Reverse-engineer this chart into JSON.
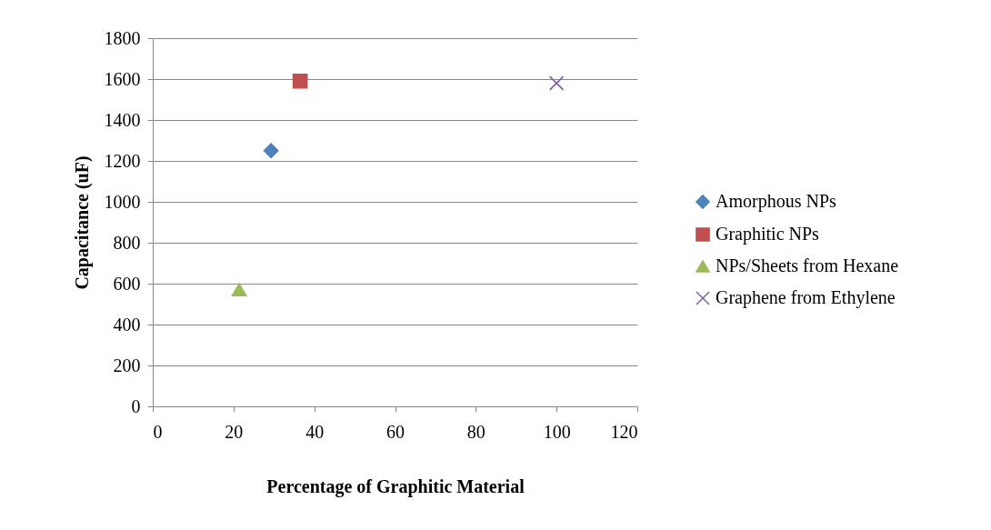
{
  "chart_data": {
    "type": "scatter",
    "xlabel": "Percentage of Graphitic Material",
    "ylabel": "Capacitance (uF)",
    "xlim": [
      0,
      120
    ],
    "xticks": [
      0,
      20,
      40,
      60,
      80,
      100,
      120
    ],
    "ylim": [
      0,
      1800
    ],
    "yticks": [
      0,
      200,
      400,
      600,
      800,
      1000,
      1200,
      1400,
      1600,
      1800
    ],
    "grid": "y",
    "legend": "right",
    "series": [
      {
        "name": "Amorphous NPs",
        "color": "#4f81bd",
        "marker": "diamond",
        "x": [
          29.3
        ],
        "values": [
          1250
        ]
      },
      {
        "name": "Graphitic NPs",
        "color": "#c0504d",
        "marker": "square",
        "x": [
          36.5
        ],
        "values": [
          1590
        ]
      },
      {
        "name": "NPs/Sheets from Hexane",
        "color": "#9bbb59",
        "marker": "triangle",
        "x": [
          21.4
        ],
        "values": [
          570
        ]
      },
      {
        "name": "Graphene from Ethylene",
        "color": "#8064a2",
        "marker": "cross",
        "x": [
          100
        ],
        "values": [
          1580
        ]
      }
    ]
  }
}
